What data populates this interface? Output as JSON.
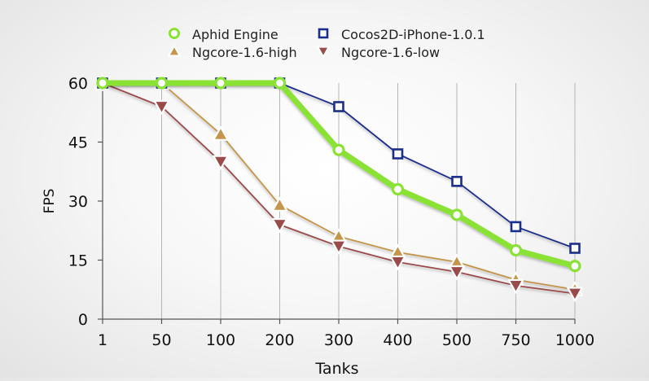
{
  "chart_data": {
    "type": "line",
    "title": "",
    "xlabel": "Tanks",
    "ylabel": "FPS",
    "categories": [
      "1",
      "50",
      "100",
      "200",
      "300",
      "400",
      "500",
      "750",
      "1000"
    ],
    "ylim": [
      0,
      60
    ],
    "yticks": [
      "0",
      "15",
      "30",
      "45",
      "60"
    ],
    "grid": "vertical",
    "legend_position": "top",
    "series": [
      {
        "name": "Aphid Engine",
        "values": [
          60,
          60,
          60,
          60,
          43,
          33,
          26.5,
          17.5,
          13.5
        ],
        "color": "#8ae234",
        "marker": "circle"
      },
      {
        "name": "Cocos2D-iPhone-1.0.1",
        "values": [
          60,
          60,
          60,
          60,
          54,
          42,
          35,
          23.5,
          18
        ],
        "color": "#1a2e8c",
        "marker": "square"
      },
      {
        "name": "Ngcore-1.6-high",
        "values": [
          60,
          60,
          47,
          29,
          21,
          17,
          14.5,
          10,
          7.5
        ],
        "color": "#c4954a",
        "marker": "triangle-up"
      },
      {
        "name": "Ngcore-1.6-low",
        "values": [
          60,
          54,
          40,
          24,
          18.5,
          14.5,
          12,
          8.5,
          6.5
        ],
        "color": "#9b4a4a",
        "marker": "triangle-down"
      }
    ]
  }
}
